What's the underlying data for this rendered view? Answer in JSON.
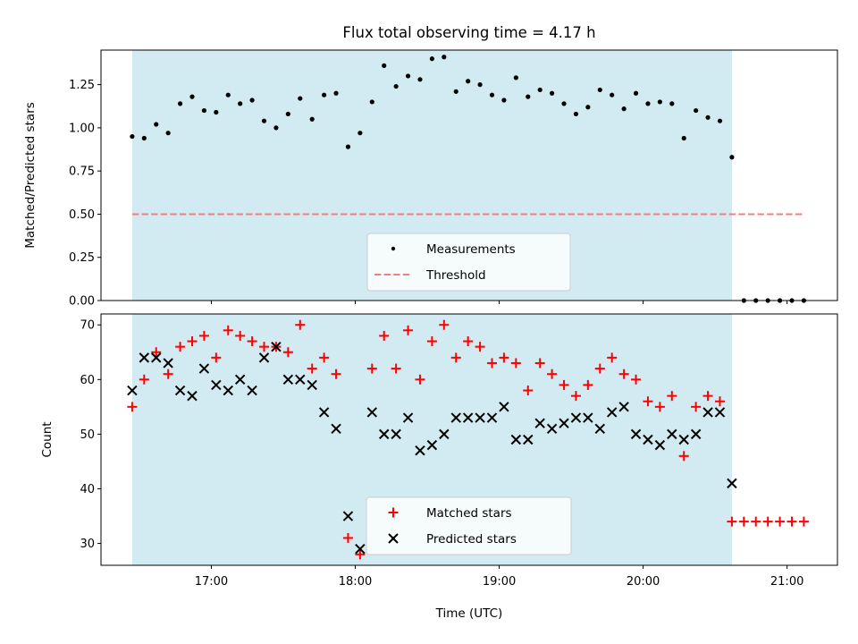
{
  "chart_data": [
    {
      "type": "scatter",
      "title": "Flux total observing time = 4.17 h",
      "xlabel": "",
      "ylabel": "Matched/Predicted stars",
      "xlim": [
        "16:14",
        "21:21"
      ],
      "ylim": [
        0,
        1.45
      ],
      "yticks": [
        0,
        0.25,
        0.5,
        0.75,
        1.0,
        1.25
      ],
      "ytick_labels": [
        "0.00",
        "0.25",
        "0.50",
        "0.75",
        "1.00",
        "1.25"
      ],
      "xticks": [
        "17:00",
        "18:00",
        "19:00",
        "20:00",
        "21:00"
      ],
      "xtick_labels_shown": false,
      "observing_window": {
        "start": "16:27",
        "end": "20:37",
        "color": "#add8e6"
      },
      "threshold": {
        "value": 0.5,
        "x_start": "16:27",
        "x_end": "21:07",
        "color": "#f08080",
        "style": "dashed"
      },
      "legend": {
        "position": "lower center",
        "entries": [
          "Measurements",
          "Threshold"
        ]
      },
      "series": [
        {
          "name": "Measurements",
          "marker": "dot",
          "color": "#000000",
          "x": [
            "16:27",
            "16:32",
            "16:37",
            "16:42",
            "16:47",
            "16:52",
            "16:57",
            "17:02",
            "17:07",
            "17:12",
            "17:17",
            "17:22",
            "17:27",
            "17:32",
            "17:37",
            "17:42",
            "17:47",
            "17:52",
            "17:57",
            "18:02",
            "18:07",
            "18:12",
            "18:17",
            "18:22",
            "18:27",
            "18:32",
            "18:37",
            "18:42",
            "18:47",
            "18:52",
            "18:57",
            "19:02",
            "19:07",
            "19:12",
            "19:17",
            "19:22",
            "19:27",
            "19:32",
            "19:37",
            "19:42",
            "19:47",
            "19:52",
            "19:57",
            "20:02",
            "20:07",
            "20:12",
            "20:17",
            "20:22",
            "20:27",
            "20:32",
            "20:37",
            "20:42",
            "20:47",
            "20:52",
            "20:57",
            "21:02",
            "21:07"
          ],
          "y": [
            0.95,
            0.94,
            1.02,
            0.97,
            1.14,
            1.18,
            1.1,
            1.09,
            1.19,
            1.14,
            1.16,
            1.04,
            1.0,
            1.08,
            1.17,
            1.05,
            1.19,
            1.2,
            0.89,
            0.97,
            1.15,
            1.36,
            1.24,
            1.3,
            1.28,
            1.4,
            1.41,
            1.21,
            1.27,
            1.25,
            1.19,
            1.16,
            1.29,
            1.18,
            1.22,
            1.2,
            1.14,
            1.08,
            1.12,
            1.22,
            1.19,
            1.11,
            1.2,
            1.14,
            1.15,
            1.14,
            0.94,
            1.1,
            1.06,
            1.04,
            0.83,
            0,
            0,
            0,
            0,
            0,
            0
          ]
        }
      ]
    },
    {
      "type": "scatter",
      "title": "",
      "xlabel": "Time (UTC)",
      "ylabel": "Count",
      "xlim": [
        "16:14",
        "21:21"
      ],
      "ylim": [
        26,
        72
      ],
      "yticks": [
        30,
        40,
        50,
        60,
        70
      ],
      "xticks": [
        "17:00",
        "18:00",
        "19:00",
        "20:00",
        "21:00"
      ],
      "observing_window": {
        "start": "16:27",
        "end": "20:37",
        "color": "#add8e6"
      },
      "legend": {
        "position": "lower center",
        "entries": [
          "Matched stars",
          "Predicted stars"
        ]
      },
      "x": [
        "16:27",
        "16:32",
        "16:37",
        "16:42",
        "16:47",
        "16:52",
        "16:57",
        "17:02",
        "17:07",
        "17:12",
        "17:17",
        "17:22",
        "17:27",
        "17:32",
        "17:37",
        "17:42",
        "17:47",
        "17:52",
        "17:57",
        "18:02",
        "18:07",
        "18:12",
        "18:17",
        "18:22",
        "18:27",
        "18:32",
        "18:37",
        "18:42",
        "18:47",
        "18:52",
        "18:57",
        "19:02",
        "19:07",
        "19:12",
        "19:17",
        "19:22",
        "19:27",
        "19:32",
        "19:37",
        "19:42",
        "19:47",
        "19:52",
        "19:57",
        "20:02",
        "20:07",
        "20:12",
        "20:17",
        "20:22",
        "20:27",
        "20:32",
        "20:37",
        "20:42",
        "20:47",
        "20:52",
        "20:57",
        "21:02",
        "21:07"
      ],
      "series": [
        {
          "name": "Matched stars",
          "marker": "plus",
          "color": "#ff0000",
          "y": [
            55,
            60,
            65,
            61,
            66,
            67,
            68,
            64,
            69,
            68,
            67,
            66,
            66,
            65,
            70,
            62,
            64,
            61,
            31,
            28,
            62,
            68,
            62,
            69,
            60,
            67,
            70,
            64,
            67,
            66,
            63,
            64,
            63,
            58,
            63,
            61,
            59,
            57,
            59,
            62,
            64,
            61,
            60,
            56,
            55,
            57,
            46,
            55,
            57,
            56,
            34,
            34,
            34,
            34,
            34,
            34,
            34
          ]
        },
        {
          "name": "Predicted stars",
          "marker": "x",
          "color": "#000000",
          "y": [
            58,
            64,
            64,
            63,
            58,
            57,
            62,
            59,
            58,
            60,
            58,
            64,
            66,
            60,
            60,
            59,
            54,
            51,
            35,
            29,
            54,
            50,
            50,
            53,
            47,
            48,
            50,
            53,
            53,
            53,
            53,
            55,
            49,
            49,
            52,
            51,
            52,
            53,
            53,
            51,
            54,
            55,
            50,
            49,
            48,
            50,
            49,
            50,
            54,
            54,
            41,
            null,
            null,
            null,
            null,
            null,
            null
          ]
        }
      ]
    }
  ]
}
